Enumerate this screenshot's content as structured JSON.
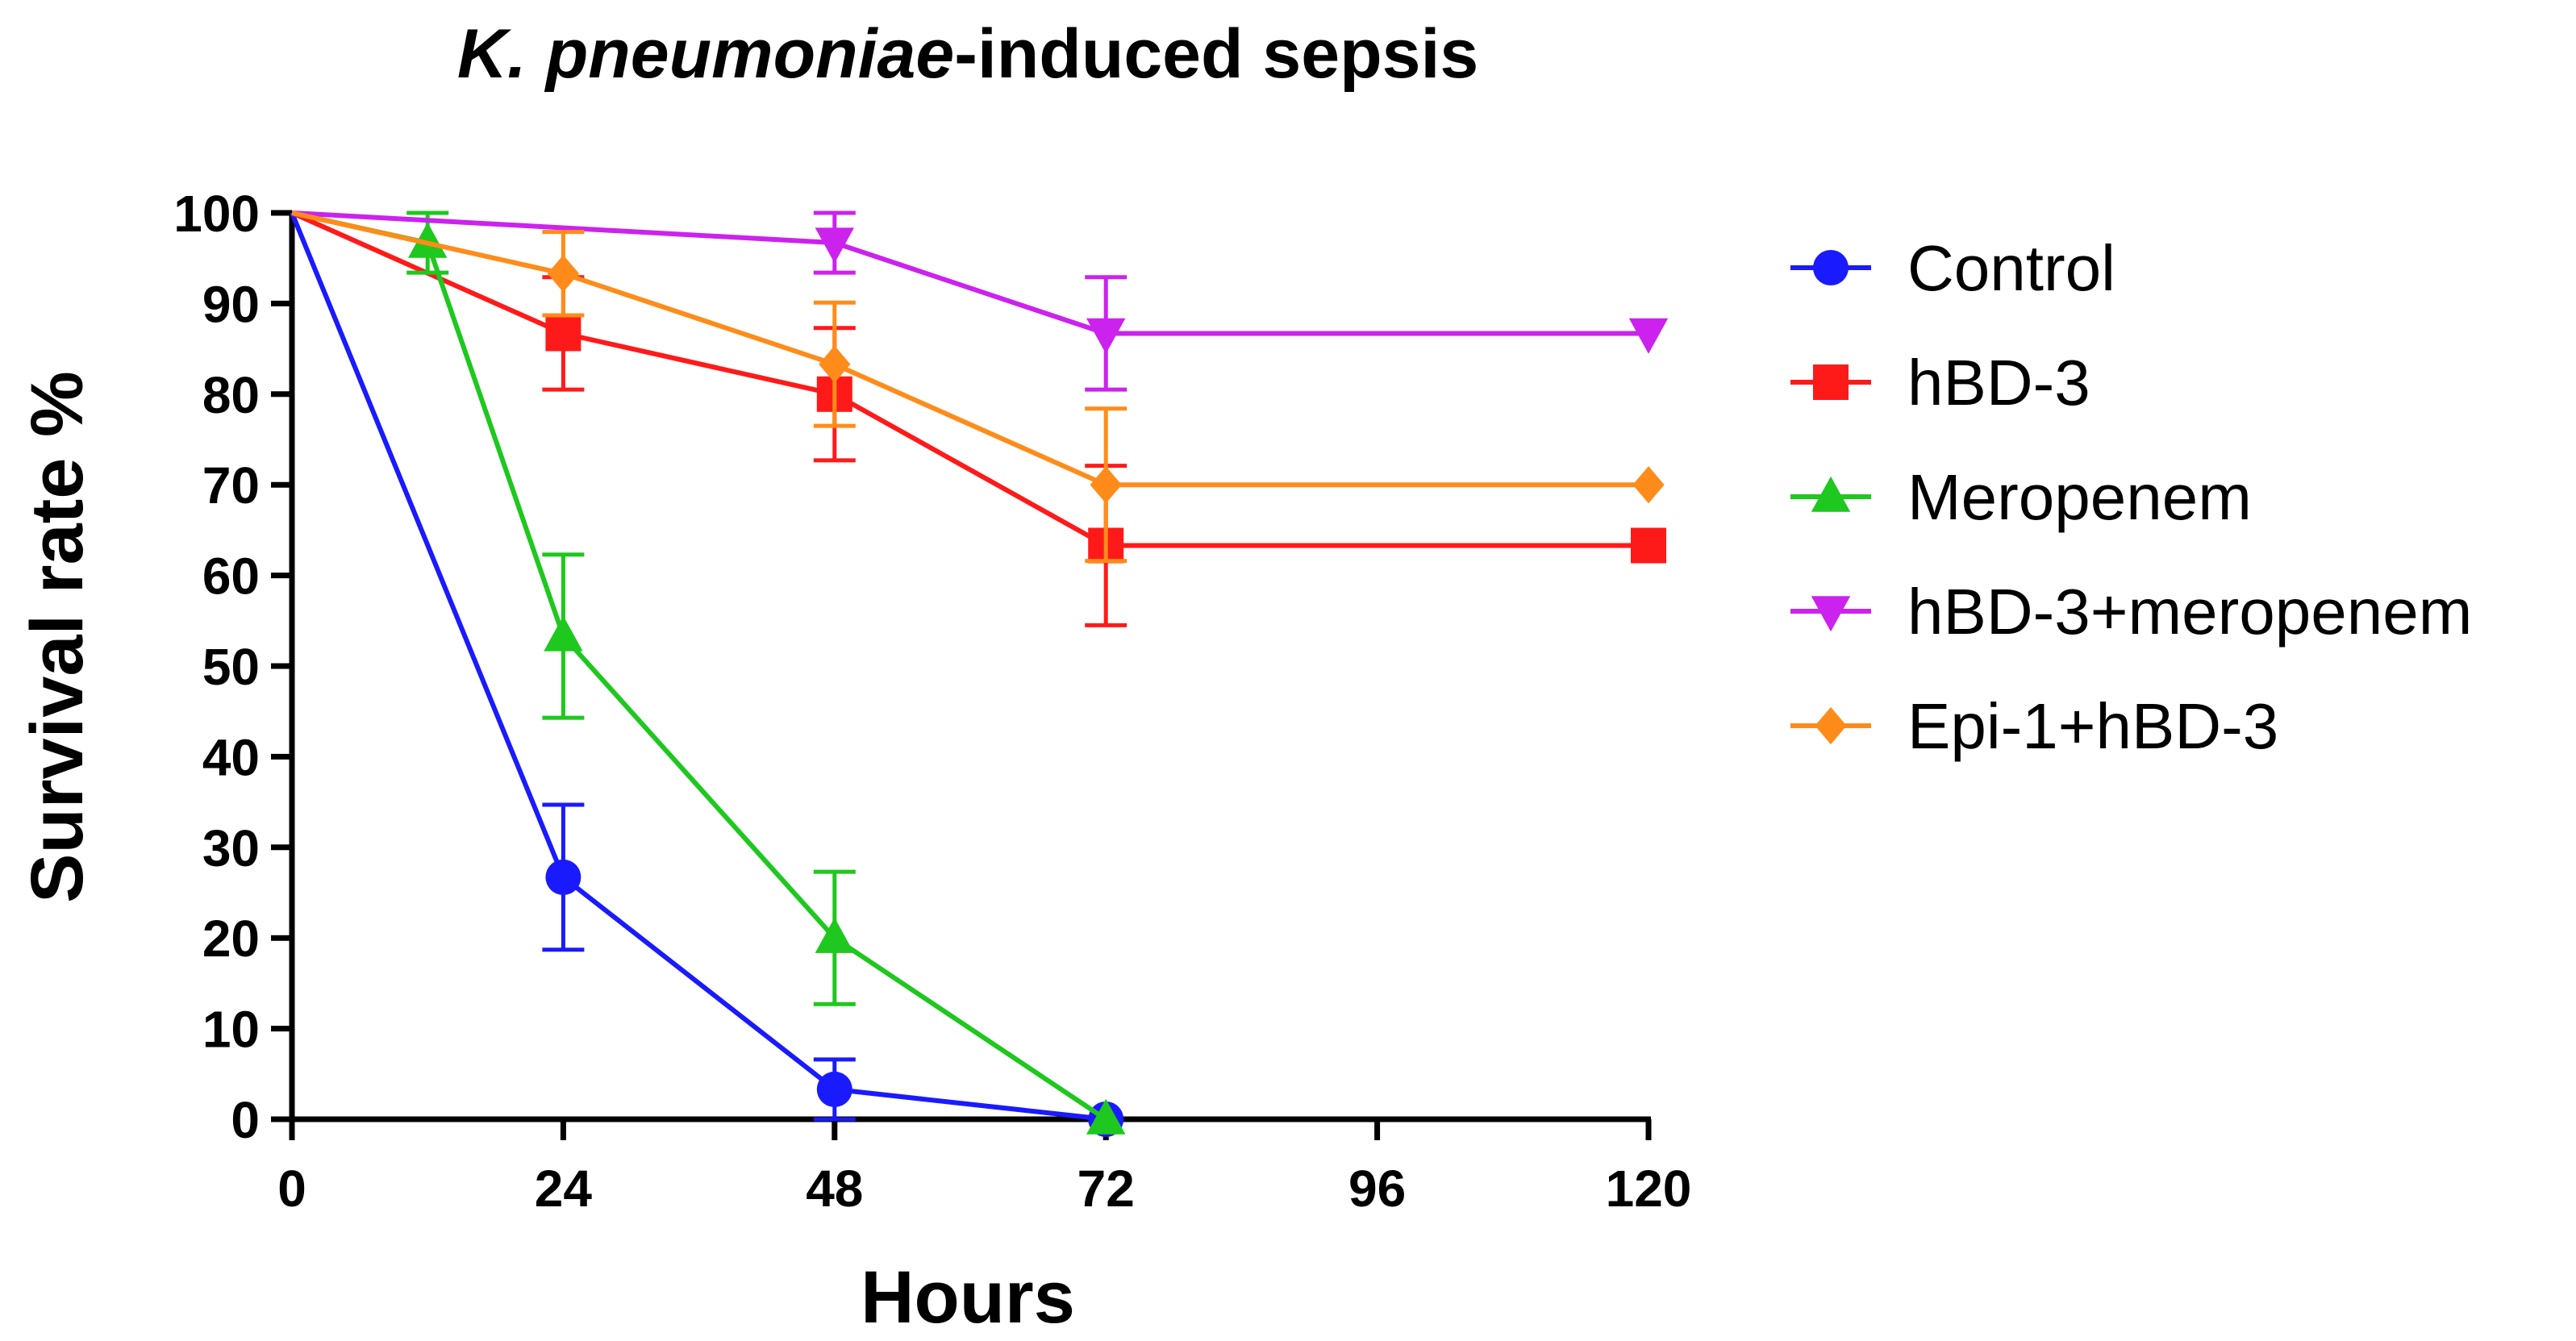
{
  "chart_data": {
    "type": "line",
    "title_italic": "K. pneumoniae",
    "title_rest": "-induced sepsis",
    "xlabel": "Hours",
    "ylabel": "Survival rate %",
    "xlim": [
      0,
      120
    ],
    "ylim": [
      0,
      100
    ],
    "xticks": [
      0,
      24,
      48,
      72,
      96,
      120
    ],
    "yticks": [
      0,
      10,
      20,
      30,
      40,
      50,
      60,
      70,
      80,
      90,
      100
    ],
    "grid": false,
    "legend_position": "right",
    "series": [
      {
        "name": "Control",
        "color": "#1a1aff",
        "marker": "circle",
        "points": [
          {
            "x": 0,
            "y": 100
          },
          {
            "x": 24,
            "y": 26.7,
            "err": 8
          },
          {
            "x": 48,
            "y": 3.3,
            "err": 3.3
          },
          {
            "x": 72,
            "y": 0
          }
        ]
      },
      {
        "name": "hBD-3",
        "color": "#ff1a1a",
        "marker": "square",
        "points": [
          {
            "x": 0,
            "y": 100
          },
          {
            "x": 24,
            "y": 86.7,
            "err": 6.2
          },
          {
            "x": 48,
            "y": 80,
            "err": 7.3
          },
          {
            "x": 72,
            "y": 63.3,
            "err": 8.8
          },
          {
            "x": 120,
            "y": 63.3
          }
        ]
      },
      {
        "name": "Meropenem",
        "color": "#1ec81e",
        "marker": "triangle-up",
        "points": [
          {
            "x": 0,
            "y": 100
          },
          {
            "x": 12,
            "y": 96.7,
            "err": 3.3
          },
          {
            "x": 24,
            "y": 53.3,
            "err": 9
          },
          {
            "x": 48,
            "y": 20,
            "err": 7.3
          },
          {
            "x": 72,
            "y": 0
          }
        ]
      },
      {
        "name": "hBD-3+meropenem",
        "color": "#cc22ee",
        "marker": "triangle-down",
        "points": [
          {
            "x": 0,
            "y": 100
          },
          {
            "x": 48,
            "y": 96.7,
            "err": 3.3
          },
          {
            "x": 72,
            "y": 86.7,
            "err": 6.2
          },
          {
            "x": 120,
            "y": 86.7
          }
        ]
      },
      {
        "name": "Epi-1+hBD-3",
        "color": "#ff8c1a",
        "marker": "diamond",
        "points": [
          {
            "x": 0,
            "y": 100
          },
          {
            "x": 24,
            "y": 93.3,
            "err": 4.6
          },
          {
            "x": 48,
            "y": 83.3,
            "err": 6.8
          },
          {
            "x": 72,
            "y": 70,
            "err": 8.4
          },
          {
            "x": 120,
            "y": 70
          }
        ]
      }
    ]
  }
}
